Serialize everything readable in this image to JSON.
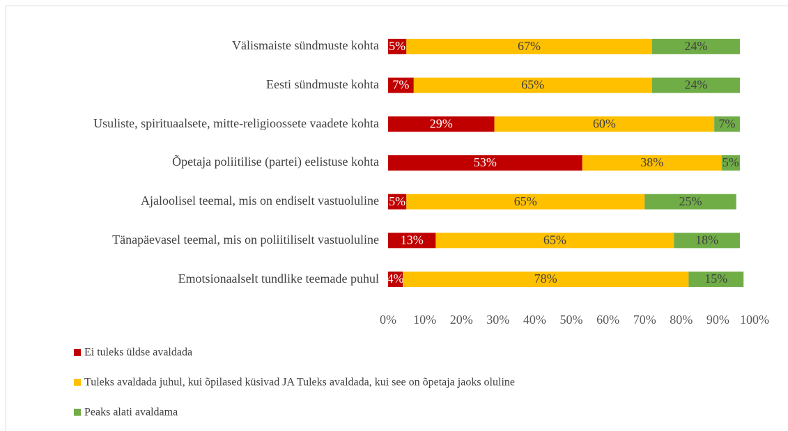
{
  "chart_data": {
    "type": "stacked_barh",
    "categories": [
      "Välismaiste sündmuste kohta",
      "Eesti sündmuste kohta",
      "Usuliste, spirituaalsete, mitte-religioossete vaadete kohta",
      "Õpetaja poliitilise (partei) eelistuse kohta",
      "Ajaloolisel teemal, mis on endiselt vastuoluline",
      "Tänapäevasel teemal, mis on poliitiliselt vastuoluline",
      "Emotsionaalselt tundlike teemade puhul"
    ],
    "series": [
      {
        "name": "Ei tuleks üldse avaldada",
        "color": "#c00000",
        "values": [
          5,
          7,
          29,
          53,
          5,
          13,
          4
        ],
        "value_labels": [
          "5%",
          "7%",
          "29%",
          "53%",
          "5%",
          "13%",
          "4%"
        ]
      },
      {
        "name": "Tuleks avaldada juhul, kui õpilased küsivad JA Tuleks avaldada, kui see on õpetaja jaoks oluline",
        "color": "#ffc000",
        "values": [
          67,
          65,
          60,
          38,
          65,
          65,
          78
        ],
        "value_labels": [
          "67%",
          "65%",
          "60%",
          "38%",
          "65%",
          "65%",
          "78%"
        ]
      },
      {
        "name": "Peaks alati avaldama",
        "color": "#70ad47",
        "values": [
          24,
          24,
          7,
          5,
          25,
          18,
          15
        ],
        "value_labels": [
          "24%",
          "24%",
          "7%",
          "5%",
          "25%",
          "18%",
          "15%"
        ]
      }
    ],
    "xlim": [
      0,
      100
    ],
    "xticks": [
      {
        "value": 0,
        "label": "0%"
      },
      {
        "value": 10,
        "label": "10%"
      },
      {
        "value": 20,
        "label": "20%"
      },
      {
        "value": 30,
        "label": "30%"
      },
      {
        "value": 40,
        "label": "40%"
      },
      {
        "value": 50,
        "label": "50%"
      },
      {
        "value": 60,
        "label": "60%"
      },
      {
        "value": 70,
        "label": "70%"
      },
      {
        "value": 80,
        "label": "80%"
      },
      {
        "value": 90,
        "label": "90%"
      },
      {
        "value": 100,
        "label": "100%"
      }
    ],
    "legend": "bottom"
  }
}
